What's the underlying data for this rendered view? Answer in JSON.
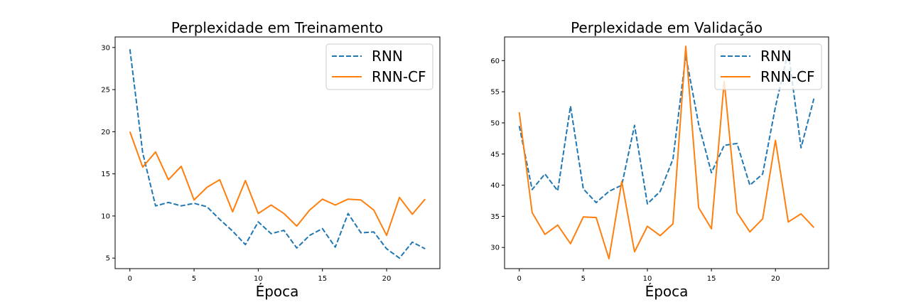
{
  "chart_data": [
    {
      "type": "line",
      "title": "Perplexidade em Treinamento",
      "xlabel": "Época",
      "ylabel": "",
      "xlim": [
        -1.15,
        24.15
      ],
      "ylim": [
        3.75,
        31.25
      ],
      "xticks": [
        0,
        5,
        10,
        15,
        20
      ],
      "yticks": [
        5,
        10,
        15,
        20,
        25,
        30
      ],
      "legend_position": "top-right",
      "grid": false,
      "x": [
        0,
        1,
        2,
        3,
        4,
        5,
        6,
        7,
        8,
        9,
        10,
        11,
        12,
        13,
        14,
        15,
        16,
        17,
        18,
        19,
        20,
        21,
        22,
        23
      ],
      "series": [
        {
          "name": "RNN",
          "color": "#1f77b4",
          "style": "dashed",
          "values": [
            29.8,
            17.5,
            11.2,
            11.6,
            11.2,
            11.5,
            11.1,
            9.6,
            8.2,
            6.6,
            9.3,
            7.9,
            8.3,
            6.2,
            7.7,
            8.5,
            6.3,
            10.3,
            8.0,
            8.1,
            6.1,
            5.0,
            6.9,
            6.1
          ]
        },
        {
          "name": "RNN-CF",
          "color": "#ff7f0e",
          "style": "solid",
          "values": [
            20.0,
            15.8,
            17.6,
            14.3,
            15.9,
            11.9,
            13.4,
            14.3,
            10.5,
            14.2,
            10.3,
            11.3,
            10.3,
            8.8,
            10.7,
            12.0,
            11.3,
            12.0,
            11.9,
            10.7,
            7.7,
            12.2,
            10.2,
            12.0
          ]
        }
      ]
    },
    {
      "type": "line",
      "title": "Perplexidade em Validação",
      "xlabel": "Época",
      "ylabel": "",
      "xlim": [
        -1.15,
        24.15
      ],
      "ylim": [
        26.6,
        63.8
      ],
      "xticks": [
        0,
        5,
        10,
        15,
        20
      ],
      "yticks": [
        30,
        35,
        40,
        45,
        50,
        55,
        60
      ],
      "legend_position": "top-right",
      "grid": false,
      "x": [
        0,
        1,
        2,
        3,
        4,
        5,
        6,
        7,
        8,
        9,
        10,
        11,
        12,
        13,
        14,
        15,
        16,
        17,
        18,
        19,
        20,
        21,
        22,
        23
      ],
      "series": [
        {
          "name": "RNN",
          "color": "#1f77b4",
          "style": "dashed",
          "values": [
            49.5,
            39.3,
            41.8,
            39.1,
            52.7,
            39.4,
            37.2,
            39.0,
            40.0,
            49.6,
            37.0,
            39.0,
            44.2,
            60.8,
            49.8,
            42.0,
            46.4,
            46.7,
            40.0,
            41.8,
            52.6,
            61.5,
            46.0,
            53.9
          ]
        },
        {
          "name": "RNN-CF",
          "color": "#ff7f0e",
          "style": "solid",
          "values": [
            51.7,
            35.6,
            32.1,
            33.6,
            30.6,
            34.9,
            34.8,
            28.2,
            40.6,
            29.3,
            33.4,
            31.9,
            33.8,
            62.3,
            36.4,
            33.0,
            56.7,
            35.6,
            32.5,
            34.6,
            47.2,
            34.1,
            35.4,
            33.2
          ]
        }
      ]
    }
  ]
}
